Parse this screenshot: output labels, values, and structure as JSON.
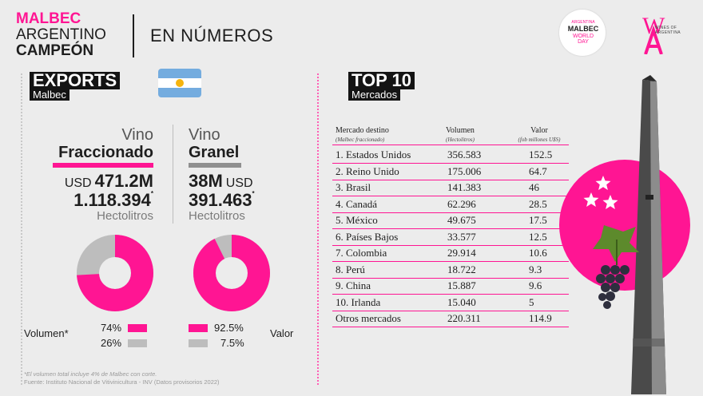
{
  "header": {
    "brand_line1": "MALBEC",
    "brand_line2": "ARGENTINO",
    "brand_line3": "CAMPEÓN",
    "title": "EN NÚMEROS",
    "wmd_logo": [
      "ARGENTINA",
      "MALBEC",
      "WORLD",
      "DAY"
    ],
    "woa_logo_mark": "W",
    "woa_logo_text": "WINES OF ARGENTINA"
  },
  "exports": {
    "title": "EXPORTS",
    "subtitle": "Malbec",
    "flag_colors": [
      "#74acdf",
      "#ffffff",
      "#74acdf"
    ],
    "fraccionado": {
      "label1": "Vino",
      "label2": "Fraccionado",
      "currency": "USD",
      "value": "471.2M",
      "volume": "1.118.394",
      "volume_mark": "*",
      "unit": "Hectolitros"
    },
    "granel": {
      "label1": "Vino",
      "label2": "Granel",
      "currency": "USD",
      "value": "38M",
      "volume": "391.463",
      "volume_mark": "*",
      "unit": "Hectolitros"
    },
    "donut_volumen": {
      "fraccionado_share": 0.74,
      "granel_share": 0.26
    },
    "donut_valor": {
      "fraccionado_share": 0.925,
      "granel_share": 0.075
    },
    "legend_left_label": "Volumen*",
    "legend_left": [
      "74%",
      "26%"
    ],
    "legend_right_label": "Valor",
    "legend_right": [
      "92.5%",
      "7.5%"
    ],
    "colors": {
      "fraccionado": "#ff1593",
      "granel": "#bdbdbd"
    }
  },
  "footnote": {
    "line1": "*El volumen total incluye 4% de Malbec con corte.",
    "line2": "Fuente: Instituto Nacional de Vitivinicultura - INV (Datos provisorios 2022)"
  },
  "top10": {
    "title": "TOP 10",
    "subtitle": "Mercados",
    "columns": [
      {
        "label": "Mercado destino",
        "sub": "(Malbec fraccionado)"
      },
      {
        "label": "Volumen",
        "sub": "(Hectolitros)"
      },
      {
        "label": "Valor",
        "sub": "(fob millones U$S)"
      }
    ],
    "rows": [
      [
        "1. Estados Unidos",
        "356.583",
        "152.5"
      ],
      [
        "2. Reino Unido",
        "175.006",
        "64.7"
      ],
      [
        "3. Brasil",
        "141.383",
        "46"
      ],
      [
        "4. Canadá",
        "62.296",
        "28.5"
      ],
      [
        "5. México",
        "49.675",
        "17.5"
      ],
      [
        "6. Países Bajos",
        "33.577",
        "12.5"
      ],
      [
        "7. Colombia",
        "29.914",
        "10.6"
      ],
      [
        "8. Perú",
        "18.722",
        "9.3"
      ],
      [
        "9. China",
        "15.887",
        "9.6"
      ],
      [
        "10. Irlanda",
        "15.040",
        "5"
      ],
      [
        "Otros mercados",
        "220.311",
        "114.9"
      ]
    ]
  },
  "accent_color": "#ff1593"
}
